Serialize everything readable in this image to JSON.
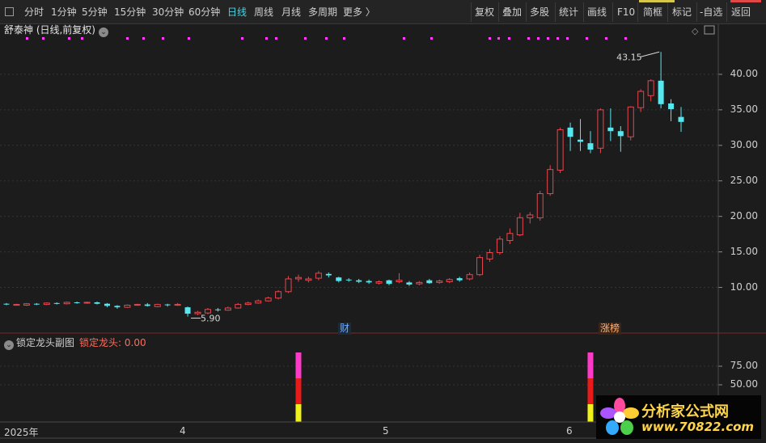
{
  "toolbar": {
    "periods": [
      "分时",
      "1分钟",
      "5分钟",
      "15分钟",
      "30分钟",
      "60分钟",
      "日线",
      "周线",
      "月线",
      "多周期",
      "更多 〉"
    ],
    "active_period": "日线",
    "right": [
      "复权",
      "叠加",
      "多股",
      "统计",
      "画线",
      "F10",
      "简框",
      "标记",
      "-自选",
      "返回"
    ]
  },
  "stock": {
    "title": "舒泰神 (日线,前复权)"
  },
  "main_chart": {
    "high_label": "43.15",
    "low_label": "5.90",
    "tags": [
      "财",
      "涨榜"
    ]
  },
  "sub_chart": {
    "title": "锁定龙头副图",
    "value_label": "锁定龙头: 0.00"
  },
  "logo": {
    "line1": "分析家公式网",
    "line2": "www.70822.com"
  },
  "chart_data": [
    {
      "type": "candlestick",
      "title": "舒泰神 (日线,前复权)",
      "y_ticks": [
        "40.00",
        "35.00",
        "30.00",
        "25.00",
        "20.00",
        "15.00",
        "10.00"
      ],
      "x_ticks": [
        "2025年",
        "4",
        "5",
        "6"
      ],
      "ylim": [
        3.8,
        45.0
      ],
      "colors": {
        "up": "#e8464e",
        "down": "#56e8ee"
      },
      "candles": [
        {
          "o": 7.7,
          "c": 7.6,
          "h": 7.8,
          "l": 7.5
        },
        {
          "o": 7.6,
          "c": 7.6,
          "h": 7.7,
          "l": 7.5
        },
        {
          "o": 7.5,
          "c": 7.7,
          "h": 7.8,
          "l": 7.4
        },
        {
          "o": 7.7,
          "c": 7.6,
          "h": 7.8,
          "l": 7.5
        },
        {
          "o": 7.6,
          "c": 7.8,
          "h": 7.9,
          "l": 7.5
        },
        {
          "o": 7.8,
          "c": 7.7,
          "h": 7.9,
          "l": 7.6
        },
        {
          "o": 7.7,
          "c": 7.9,
          "h": 8.0,
          "l": 7.6
        },
        {
          "o": 7.9,
          "c": 7.8,
          "h": 8.0,
          "l": 7.7
        },
        {
          "o": 7.8,
          "c": 7.9,
          "h": 8.0,
          "l": 7.7
        },
        {
          "o": 7.9,
          "c": 7.7,
          "h": 8.0,
          "l": 7.6
        },
        {
          "o": 7.7,
          "c": 7.4,
          "h": 7.8,
          "l": 7.2
        },
        {
          "o": 7.4,
          "c": 7.2,
          "h": 7.5,
          "l": 7.0
        },
        {
          "o": 7.2,
          "c": 7.5,
          "h": 7.6,
          "l": 7.1
        },
        {
          "o": 7.5,
          "c": 7.6,
          "h": 7.7,
          "l": 7.4
        },
        {
          "o": 7.6,
          "c": 7.4,
          "h": 7.8,
          "l": 7.3
        },
        {
          "o": 7.3,
          "c": 7.6,
          "h": 7.7,
          "l": 7.2
        },
        {
          "o": 7.6,
          "c": 7.5,
          "h": 7.7,
          "l": 7.3
        },
        {
          "o": 7.5,
          "c": 7.6,
          "h": 7.8,
          "l": 7.4
        },
        {
          "o": 7.2,
          "c": 6.3,
          "h": 7.3,
          "l": 5.9
        },
        {
          "o": 6.3,
          "c": 6.5,
          "h": 6.7,
          "l": 6.1
        },
        {
          "o": 6.4,
          "c": 6.9,
          "h": 7.1,
          "l": 6.2
        },
        {
          "o": 6.9,
          "c": 6.8,
          "h": 7.1,
          "l": 6.6
        },
        {
          "o": 6.8,
          "c": 7.1,
          "h": 7.3,
          "l": 6.7
        },
        {
          "o": 7.1,
          "c": 7.6,
          "h": 7.8,
          "l": 7.0
        },
        {
          "o": 7.6,
          "c": 7.8,
          "h": 8.0,
          "l": 7.5
        },
        {
          "o": 7.8,
          "c": 8.1,
          "h": 8.3,
          "l": 7.7
        },
        {
          "o": 8.1,
          "c": 8.5,
          "h": 8.7,
          "l": 8.0
        },
        {
          "o": 8.5,
          "c": 9.4,
          "h": 9.6,
          "l": 8.3
        },
        {
          "o": 9.4,
          "c": 11.2,
          "h": 11.6,
          "l": 9.2
        },
        {
          "o": 11.2,
          "c": 11.4,
          "h": 11.8,
          "l": 10.8
        },
        {
          "o": 11.0,
          "c": 11.2,
          "h": 11.5,
          "l": 10.7
        },
        {
          "o": 11.3,
          "c": 12.0,
          "h": 12.3,
          "l": 11.0
        },
        {
          "o": 11.9,
          "c": 11.7,
          "h": 12.1,
          "l": 11.4
        },
        {
          "o": 11.4,
          "c": 10.9,
          "h": 11.5,
          "l": 10.7
        },
        {
          "o": 11.1,
          "c": 11.0,
          "h": 11.3,
          "l": 10.8
        },
        {
          "o": 11.0,
          "c": 10.8,
          "h": 11.2,
          "l": 10.6
        },
        {
          "o": 10.9,
          "c": 10.7,
          "h": 11.1,
          "l": 10.5
        },
        {
          "o": 10.6,
          "c": 10.8,
          "h": 11.0,
          "l": 10.4
        },
        {
          "o": 11.0,
          "c": 10.5,
          "h": 11.1,
          "l": 10.3
        },
        {
          "o": 10.8,
          "c": 11.0,
          "h": 12.0,
          "l": 10.6
        },
        {
          "o": 10.7,
          "c": 10.4,
          "h": 10.9,
          "l": 10.2
        },
        {
          "o": 10.5,
          "c": 10.7,
          "h": 10.9,
          "l": 10.3
        },
        {
          "o": 11.0,
          "c": 10.6,
          "h": 11.2,
          "l": 10.5
        },
        {
          "o": 10.7,
          "c": 10.9,
          "h": 11.1,
          "l": 10.5
        },
        {
          "o": 10.8,
          "c": 11.1,
          "h": 11.3,
          "l": 10.6
        },
        {
          "o": 11.3,
          "c": 11.0,
          "h": 11.5,
          "l": 10.8
        },
        {
          "o": 11.2,
          "c": 11.8,
          "h": 12.1,
          "l": 11.0
        },
        {
          "o": 11.8,
          "c": 14.2,
          "h": 14.6,
          "l": 11.6
        },
        {
          "o": 14.0,
          "c": 14.9,
          "h": 15.4,
          "l": 13.6
        },
        {
          "o": 14.9,
          "c": 16.8,
          "h": 17.2,
          "l": 14.6
        },
        {
          "o": 16.6,
          "c": 17.6,
          "h": 18.3,
          "l": 16.1
        },
        {
          "o": 17.4,
          "c": 19.8,
          "h": 20.5,
          "l": 17.2
        },
        {
          "o": 19.8,
          "c": 20.2,
          "h": 20.6,
          "l": 19.0
        },
        {
          "o": 19.8,
          "c": 23.2,
          "h": 23.6,
          "l": 19.4
        },
        {
          "o": 23.2,
          "c": 26.6,
          "h": 27.2,
          "l": 22.9
        },
        {
          "o": 26.5,
          "c": 32.2,
          "h": 32.5,
          "l": 26.1
        },
        {
          "o": 32.5,
          "c": 31.2,
          "h": 33.2,
          "l": 29.2
        },
        {
          "o": 30.8,
          "c": 30.5,
          "h": 33.7,
          "l": 29.2
        },
        {
          "o": 30.3,
          "c": 29.4,
          "h": 32.0,
          "l": 28.9
        },
        {
          "o": 29.6,
          "c": 35.0,
          "h": 35.2,
          "l": 28.9
        },
        {
          "o": 32.5,
          "c": 32.0,
          "h": 35.2,
          "l": 30.6
        },
        {
          "o": 32.0,
          "c": 31.3,
          "h": 32.7,
          "l": 29.1
        },
        {
          "o": 31.2,
          "c": 35.4,
          "h": 35.5,
          "l": 30.7
        },
        {
          "o": 35.3,
          "c": 37.6,
          "h": 37.9,
          "l": 34.7
        },
        {
          "o": 37.0,
          "c": 39.1,
          "h": 39.3,
          "l": 36.2
        },
        {
          "o": 39.1,
          "c": 35.8,
          "h": 43.15,
          "l": 35.2
        },
        {
          "o": 35.9,
          "c": 35.1,
          "h": 36.5,
          "l": 33.4
        },
        {
          "o": 34.0,
          "c": 33.3,
          "h": 35.4,
          "l": 31.9
        }
      ],
      "annotations": [
        {
          "text": "43.15",
          "value": 43.15
        },
        {
          "text": "5.90",
          "value": 5.9
        }
      ]
    },
    {
      "type": "bar",
      "title": "锁定龙头副图",
      "y_ticks": [
        "75.00",
        "50.00"
      ],
      "ylim": [
        0,
        100
      ],
      "series": [
        {
          "name": "锁定龙头",
          "values": [
            0.0
          ]
        }
      ],
      "colors": [
        "#ff3ac8",
        "#e81a1a",
        "#f0f01a"
      ]
    }
  ]
}
